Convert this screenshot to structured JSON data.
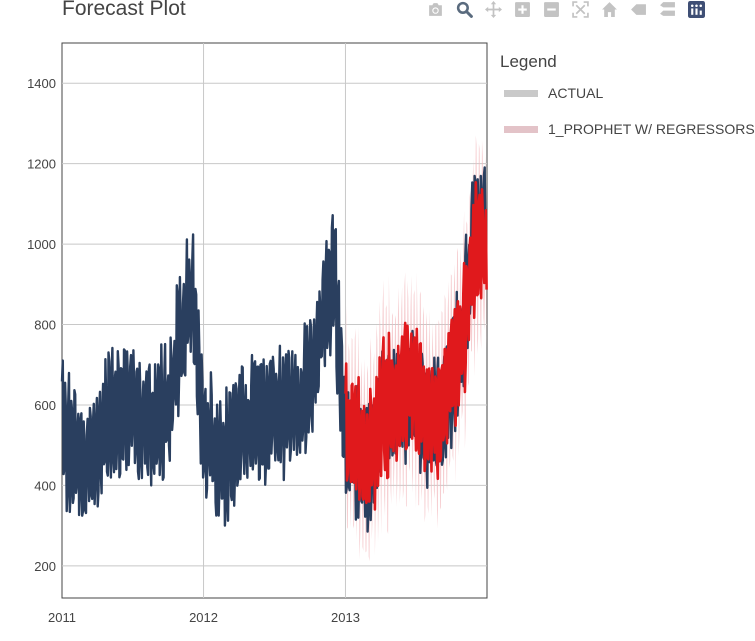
{
  "modebar": {
    "icons": [
      "camera-icon",
      "zoom-icon",
      "pan-icon",
      "zoom-in-icon",
      "zoom-out-icon",
      "autoscale-icon",
      "home-icon",
      "hover-closest-icon",
      "hover-compare-icon",
      "plotly-logo-icon"
    ]
  },
  "chart_data": {
    "type": "line",
    "title": "Forecast Plot",
    "xlabel": "",
    "ylabel": "",
    "x_ticks": [
      "2011",
      "2012",
      "2013"
    ],
    "y_ticks": [
      200,
      400,
      600,
      800,
      1000,
      1200,
      1400
    ],
    "xlim": [
      "2011-01-01",
      "2014-01-01"
    ],
    "ylim": [
      120,
      1500
    ],
    "grid": true,
    "legend": {
      "title": "Legend",
      "placement": "right"
    },
    "series": [
      {
        "name": "ACTUAL",
        "color": "#2a3f5f",
        "legend_color": "#c9c9c9",
        "points": [
          [
            "2011-01-01",
            560
          ],
          [
            "2011-02-01",
            470
          ],
          [
            "2011-03-01",
            450
          ],
          [
            "2011-04-01",
            500
          ],
          [
            "2011-05-01",
            560
          ],
          [
            "2011-06-01",
            580
          ],
          [
            "2011-07-01",
            600
          ],
          [
            "2011-08-01",
            580
          ],
          [
            "2011-09-01",
            560
          ],
          [
            "2011-10-01",
            590
          ],
          [
            "2011-11-01",
            760
          ],
          [
            "2011-12-01",
            880
          ],
          [
            "2012-01-01",
            520
          ],
          [
            "2012-02-01",
            490
          ],
          [
            "2012-03-01",
            470
          ],
          [
            "2012-04-01",
            540
          ],
          [
            "2012-05-01",
            560
          ],
          [
            "2012-06-01",
            570
          ],
          [
            "2012-07-01",
            590
          ],
          [
            "2012-08-01",
            580
          ],
          [
            "2012-09-01",
            600
          ],
          [
            "2012-10-01",
            660
          ],
          [
            "2012-11-01",
            800
          ],
          [
            "2012-12-01",
            940
          ],
          [
            "2013-01-01",
            510
          ],
          [
            "2013-02-01",
            480
          ],
          [
            "2013-03-01",
            430
          ],
          [
            "2013-04-01",
            560
          ],
          [
            "2013-05-01",
            600
          ],
          [
            "2013-06-01",
            610
          ],
          [
            "2013-07-01",
            620
          ],
          [
            "2013-08-01",
            560
          ],
          [
            "2013-09-01",
            560
          ],
          [
            "2013-10-01",
            660
          ],
          [
            "2013-11-01",
            780
          ],
          [
            "2013-12-01",
            1050
          ]
        ]
      },
      {
        "name": "1_PROPHET W/ REGRESSORS",
        "color": "#e0191c",
        "band_color": "#f2b8bc",
        "legend_color": "#e3c3c8",
        "points": [
          [
            "2013-01-01",
            540
          ],
          [
            "2013-02-01",
            500
          ],
          [
            "2013-03-01",
            450
          ],
          [
            "2013-04-01",
            590
          ],
          [
            "2013-05-01",
            610
          ],
          [
            "2013-06-01",
            620
          ],
          [
            "2013-07-01",
            640
          ],
          [
            "2013-08-01",
            560
          ],
          [
            "2013-09-01",
            580
          ],
          [
            "2013-10-01",
            680
          ],
          [
            "2013-11-01",
            760
          ],
          [
            "2013-12-01",
            1000
          ]
        ]
      }
    ]
  }
}
